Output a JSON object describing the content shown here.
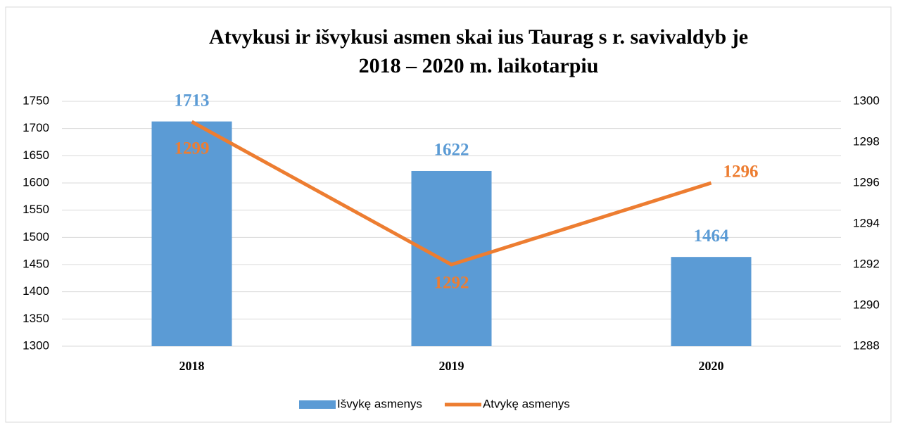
{
  "chart_data": {
    "type": "combo",
    "title": [
      "Atvykusi   ir išvykusi   asmen   skai  ius Taurag  s r. savivaldyb  je",
      "2018 – 2020 m. laikotarpiu"
    ],
    "categories": [
      "2018",
      "2019",
      "2020"
    ],
    "series": [
      {
        "name": "Išvykę asmenys",
        "type": "bar",
        "color": "#5b9bd5",
        "values": [
          1713,
          1622,
          1464
        ]
      },
      {
        "name": "Atvykę asmenys",
        "type": "line",
        "axis": "y2",
        "color": "#ed7d31",
        "values": [
          1299,
          1292,
          1296
        ]
      }
    ],
    "ylim": [
      1300,
      1750
    ],
    "yticks": [
      1300,
      1350,
      1400,
      1450,
      1500,
      1550,
      1600,
      1650,
      1700,
      1750
    ],
    "y2lim": [
      1288,
      1300
    ],
    "y2ticks": [
      1288,
      1290,
      1292,
      1294,
      1296,
      1298,
      1300
    ],
    "grid": true,
    "legend": "bottom"
  }
}
